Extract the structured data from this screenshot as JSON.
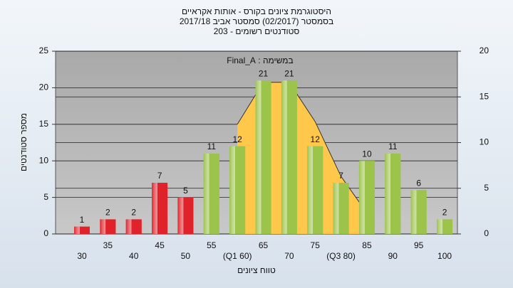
{
  "chart_data": {
    "type": "bar",
    "title_lines": [
      "היסטוגרמת ציונים בקורס - אותות אקראיים",
      "בסמסטר (02/2017)  סמסטר אביב 2017/18",
      "סטודנטים רשומים - 203"
    ],
    "annotation": "במשימה : Final_A",
    "y_label": "מספר סטודנטים",
    "x_label": "טווח ציונים",
    "categories": [
      "30",
      "35",
      "40",
      "45",
      "50",
      "55",
      "(Q1 60)",
      "65",
      "70",
      "75",
      "(Q3 80)",
      "85",
      "90",
      "95",
      "100"
    ],
    "values": [
      1,
      2,
      2,
      7,
      5,
      11,
      12,
      21,
      21,
      12,
      7,
      10,
      11,
      6,
      2
    ],
    "bar_colors": [
      "#e0232b",
      "#e0232b",
      "#e0232b",
      "#e0232b",
      "#e0232b",
      "#9cc34a",
      "#9cc34a",
      "#9cc34a",
      "#9cc34a",
      "#9cc34a",
      "#9cc34a",
      "#9cc34a",
      "#9cc34a",
      "#9cc34a",
      "#9cc34a"
    ],
    "curve": {
      "axis": "y2",
      "color": "#ffc84a",
      "values": [
        null,
        null,
        null,
        null,
        null,
        null,
        12,
        16.6,
        16.6,
        12.3,
        6.3,
        2.3,
        null,
        null,
        null
      ]
    },
    "ylim": [
      0,
      25
    ],
    "yticks": [
      0,
      5,
      10,
      15,
      20,
      25
    ],
    "y2lim": [
      0,
      20
    ],
    "y2ticks": [
      0,
      5,
      10,
      15,
      20
    ],
    "grid": true
  }
}
